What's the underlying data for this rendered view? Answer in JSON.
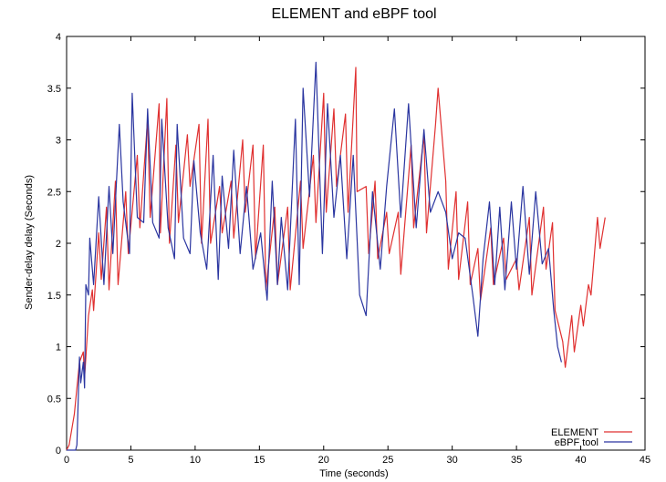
{
  "chart_data": {
    "type": "line",
    "title": "ELEMENT and eBPF tool",
    "xlabel": "Time (seconds)",
    "ylabel": "Sender-delay delay (Seconds)",
    "xlim": [
      0,
      45
    ],
    "ylim": [
      0,
      4
    ],
    "xticks": [
      0,
      5,
      10,
      15,
      20,
      25,
      30,
      35,
      40,
      45
    ],
    "yticks": [
      0,
      0.5,
      1,
      1.5,
      2,
      2.5,
      3,
      3.5,
      4
    ],
    "xtick_labels": [
      "0",
      "5",
      "10",
      "15",
      "20",
      "25",
      "30",
      "35",
      "40",
      "45"
    ],
    "ytick_labels": [
      "0",
      "0.5",
      "1",
      "1.5",
      "2",
      "2.5",
      "3",
      "3.5",
      "4"
    ],
    "grid": false,
    "legend_position": "bottom-right",
    "series": [
      {
        "name": "ELEMENT",
        "color": "#e03030",
        "points": [
          [
            0.0,
            0.0
          ],
          [
            0.2,
            0.05
          ],
          [
            0.6,
            0.35
          ],
          [
            1.0,
            0.85
          ],
          [
            1.3,
            0.95
          ],
          [
            1.4,
            0.7
          ],
          [
            1.7,
            1.3
          ],
          [
            2.0,
            1.55
          ],
          [
            2.1,
            1.35
          ],
          [
            2.5,
            2.1
          ],
          [
            2.7,
            1.65
          ],
          [
            3.1,
            2.35
          ],
          [
            3.3,
            1.55
          ],
          [
            3.8,
            2.6
          ],
          [
            4.0,
            1.6
          ],
          [
            4.6,
            2.5
          ],
          [
            4.8,
            1.9
          ],
          [
            5.5,
            2.85
          ],
          [
            5.7,
            2.15
          ],
          [
            6.3,
            3.2
          ],
          [
            6.5,
            2.25
          ],
          [
            7.2,
            3.35
          ],
          [
            7.3,
            2.1
          ],
          [
            7.8,
            3.4
          ],
          [
            8.0,
            2.0
          ],
          [
            8.5,
            2.95
          ],
          [
            8.7,
            2.2
          ],
          [
            9.4,
            3.05
          ],
          [
            9.6,
            2.55
          ],
          [
            10.3,
            3.15
          ],
          [
            10.5,
            2.0
          ],
          [
            11.0,
            3.2
          ],
          [
            11.2,
            2.0
          ],
          [
            11.9,
            2.55
          ],
          [
            12.1,
            2.1
          ],
          [
            12.8,
            2.6
          ],
          [
            13.0,
            2.05
          ],
          [
            13.7,
            3.0
          ],
          [
            13.9,
            2.3
          ],
          [
            14.5,
            2.95
          ],
          [
            14.7,
            1.85
          ],
          [
            15.3,
            2.95
          ],
          [
            15.5,
            1.55
          ],
          [
            16.2,
            2.35
          ],
          [
            16.4,
            1.6
          ],
          [
            17.2,
            2.35
          ],
          [
            17.4,
            1.55
          ],
          [
            18.2,
            2.6
          ],
          [
            18.4,
            1.95
          ],
          [
            19.2,
            2.85
          ],
          [
            19.4,
            2.2
          ],
          [
            20.0,
            3.45
          ],
          [
            20.2,
            2.3
          ],
          [
            20.8,
            3.3
          ],
          [
            21.0,
            2.55
          ],
          [
            21.7,
            3.25
          ],
          [
            21.9,
            2.3
          ],
          [
            22.5,
            3.7
          ],
          [
            22.6,
            2.5
          ],
          [
            23.3,
            2.55
          ],
          [
            23.5,
            1.9
          ],
          [
            24.0,
            2.6
          ],
          [
            24.2,
            1.85
          ],
          [
            24.9,
            2.3
          ],
          [
            25.1,
            1.9
          ],
          [
            25.8,
            2.3
          ],
          [
            26.0,
            1.7
          ],
          [
            26.8,
            2.95
          ],
          [
            27.0,
            2.15
          ],
          [
            27.8,
            3.05
          ],
          [
            28.0,
            2.1
          ],
          [
            28.7,
            3.15
          ],
          [
            28.9,
            3.5
          ],
          [
            29.5,
            2.6
          ],
          [
            29.7,
            1.75
          ],
          [
            30.3,
            2.5
          ],
          [
            30.5,
            1.65
          ],
          [
            31.2,
            2.4
          ],
          [
            31.4,
            1.6
          ],
          [
            32.0,
            1.95
          ],
          [
            32.2,
            1.45
          ],
          [
            33.0,
            2.15
          ],
          [
            33.2,
            1.6
          ],
          [
            34.0,
            2.05
          ],
          [
            34.2,
            1.65
          ],
          [
            35.0,
            1.85
          ],
          [
            35.2,
            1.55
          ],
          [
            36.0,
            2.25
          ],
          [
            36.2,
            1.5
          ],
          [
            37.1,
            2.35
          ],
          [
            37.3,
            1.75
          ],
          [
            37.8,
            2.2
          ],
          [
            38.0,
            1.35
          ],
          [
            38.6,
            1.05
          ],
          [
            38.8,
            0.8
          ],
          [
            39.3,
            1.3
          ],
          [
            39.5,
            0.95
          ],
          [
            40.0,
            1.4
          ],
          [
            40.2,
            1.2
          ],
          [
            40.6,
            1.6
          ],
          [
            40.8,
            1.5
          ],
          [
            41.3,
            2.25
          ],
          [
            41.5,
            1.95
          ],
          [
            41.9,
            2.25
          ]
        ]
      },
      {
        "name": "eBPF tool",
        "color": "#2a35a0",
        "points": [
          [
            0.0,
            0.0
          ],
          [
            0.7,
            0.0
          ],
          [
            0.8,
            0.05
          ],
          [
            1.0,
            0.9
          ],
          [
            1.1,
            0.65
          ],
          [
            1.3,
            0.85
          ],
          [
            1.4,
            0.6
          ],
          [
            1.5,
            1.6
          ],
          [
            1.7,
            1.5
          ],
          [
            1.8,
            2.05
          ],
          [
            2.1,
            1.6
          ],
          [
            2.5,
            2.45
          ],
          [
            2.9,
            1.6
          ],
          [
            3.3,
            2.55
          ],
          [
            3.6,
            1.9
          ],
          [
            4.1,
            3.15
          ],
          [
            4.4,
            2.4
          ],
          [
            4.9,
            1.9
          ],
          [
            5.1,
            3.45
          ],
          [
            5.5,
            2.25
          ],
          [
            6.0,
            2.2
          ],
          [
            6.3,
            3.3
          ],
          [
            6.7,
            2.2
          ],
          [
            7.2,
            2.05
          ],
          [
            7.4,
            3.2
          ],
          [
            7.9,
            2.15
          ],
          [
            8.4,
            1.85
          ],
          [
            8.6,
            3.15
          ],
          [
            9.1,
            2.05
          ],
          [
            9.6,
            1.9
          ],
          [
            9.9,
            2.8
          ],
          [
            10.4,
            2.1
          ],
          [
            10.9,
            1.75
          ],
          [
            11.4,
            2.85
          ],
          [
            11.8,
            1.65
          ],
          [
            12.1,
            2.65
          ],
          [
            12.6,
            1.95
          ],
          [
            13.0,
            2.9
          ],
          [
            13.5,
            1.9
          ],
          [
            14.0,
            2.55
          ],
          [
            14.5,
            1.75
          ],
          [
            15.1,
            2.1
          ],
          [
            15.6,
            1.45
          ],
          [
            16.0,
            2.6
          ],
          [
            16.4,
            1.6
          ],
          [
            16.7,
            2.25
          ],
          [
            17.2,
            1.55
          ],
          [
            17.8,
            3.2
          ],
          [
            18.1,
            1.6
          ],
          [
            18.4,
            3.5
          ],
          [
            18.9,
            2.45
          ],
          [
            19.4,
            3.75
          ],
          [
            19.9,
            1.9
          ],
          [
            20.3,
            3.35
          ],
          [
            20.8,
            2.25
          ],
          [
            21.3,
            2.85
          ],
          [
            21.8,
            1.85
          ],
          [
            22.3,
            2.85
          ],
          [
            22.8,
            1.5
          ],
          [
            23.3,
            1.3
          ],
          [
            23.8,
            2.5
          ],
          [
            24.4,
            1.75
          ],
          [
            24.9,
            2.55
          ],
          [
            25.5,
            3.3
          ],
          [
            26.0,
            2.25
          ],
          [
            26.6,
            3.35
          ],
          [
            27.2,
            2.15
          ],
          [
            27.8,
            3.1
          ],
          [
            28.3,
            2.3
          ],
          [
            28.9,
            2.5
          ],
          [
            29.5,
            2.3
          ],
          [
            30.0,
            1.85
          ],
          [
            30.5,
            2.1
          ],
          [
            31.0,
            2.05
          ],
          [
            31.6,
            1.5
          ],
          [
            32.0,
            1.1
          ],
          [
            32.4,
            1.85
          ],
          [
            32.9,
            2.4
          ],
          [
            33.3,
            1.6
          ],
          [
            33.7,
            2.35
          ],
          [
            34.1,
            1.55
          ],
          [
            34.6,
            2.4
          ],
          [
            35.0,
            1.75
          ],
          [
            35.5,
            2.55
          ],
          [
            36.0,
            1.7
          ],
          [
            36.5,
            2.5
          ],
          [
            37.0,
            1.8
          ],
          [
            37.5,
            1.95
          ],
          [
            37.9,
            1.35
          ],
          [
            38.2,
            1.0
          ],
          [
            38.5,
            0.85
          ]
        ]
      }
    ]
  }
}
